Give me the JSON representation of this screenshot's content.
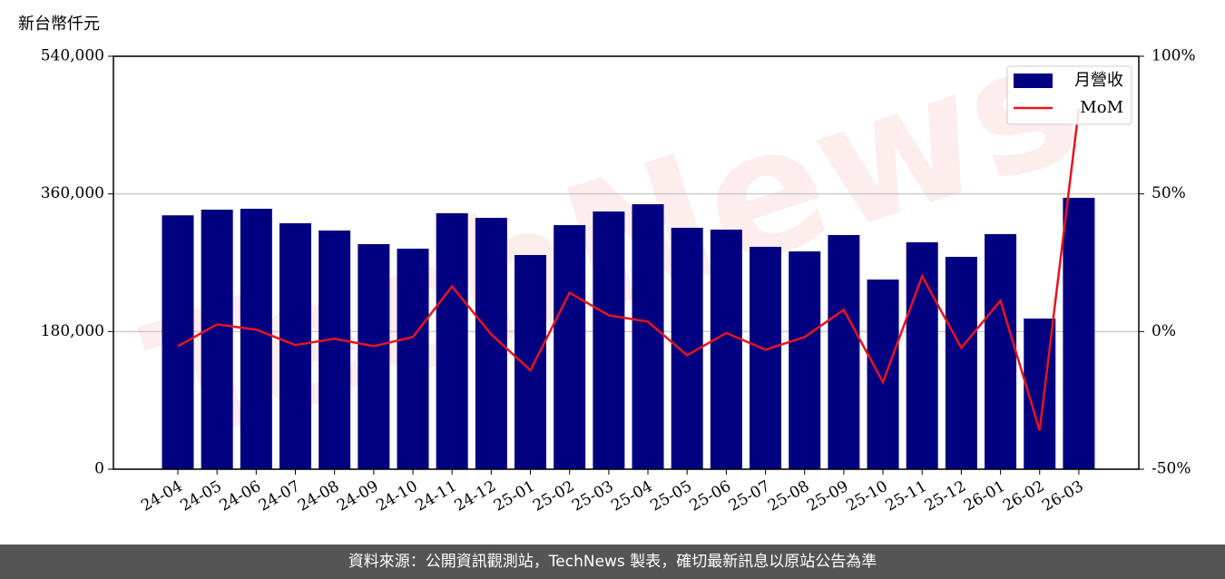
{
  "chart_data": {
    "type": "bar-line",
    "y_label": "新台幣仟元",
    "watermark": "TechNews",
    "categories": [
      "24-04",
      "24-05",
      "24-06",
      "24-07",
      "24-08",
      "24-09",
      "24-10",
      "24-11",
      "24-12",
      "25-01",
      "25-02",
      "25-03",
      "25-04",
      "25-05",
      "25-06",
      "25-07",
      "25-08",
      "25-09",
      "25-10",
      "25-11",
      "25-12",
      "26-01",
      "26-02",
      "26-03"
    ],
    "series": [
      {
        "name": "月營收",
        "type": "bar",
        "color": "#000080",
        "values": [
          332000,
          339400,
          340600,
          321600,
          312100,
          294300,
          288400,
          334700,
          328700,
          280100,
          319200,
          337000,
          346500,
          315700,
          313300,
          290800,
          284800,
          306200,
          248000,
          296700,
          277700,
          307400,
          197000,
          354900
        ]
      },
      {
        "name": "MoM",
        "type": "line",
        "axis": "y2",
        "color": "#e8141c",
        "values": [
          -5.3,
          2.6,
          0.7,
          -4.9,
          -2.6,
          -5.3,
          -2,
          16.4,
          -1,
          -14.1,
          14.1,
          5.9,
          3.6,
          -8.6,
          -0.5,
          -6.6,
          -2,
          7.9,
          -18.4,
          20.1,
          -5.9,
          11.2,
          -35.9,
          80.9
        ]
      }
    ],
    "ylim": [
      0,
      540000
    ],
    "yticks": [
      {
        "value": 0,
        "label": "0"
      },
      {
        "value": 180000,
        "label": "180,000"
      },
      {
        "value": 360000,
        "label": "360,000"
      },
      {
        "value": 540000,
        "label": "540,000"
      }
    ],
    "y2lim": [
      -50,
      100
    ],
    "y2ticks": [
      {
        "value": -50,
        "label": "-50%"
      },
      {
        "value": 0,
        "label": "0%"
      },
      {
        "value": 50,
        "label": "50%"
      },
      {
        "value": 100,
        "label": "100%"
      }
    ],
    "grid": true,
    "legend": "upper right",
    "source": "資料來源：公開資訊觀測站，TechNews 製表，確切最新訊息以原站公告為準"
  }
}
